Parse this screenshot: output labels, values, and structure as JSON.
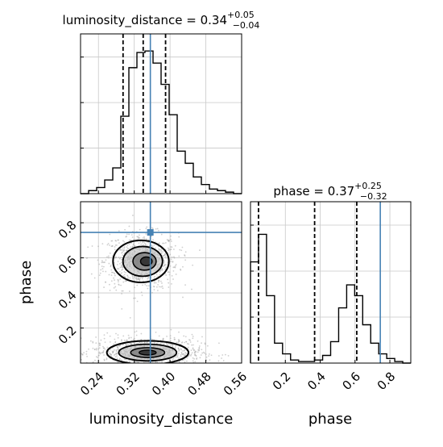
{
  "chart_data": [
    {
      "type": "histogram",
      "panel": "luminosity_distance marginal",
      "title": "luminosity_distance = 0.34",
      "title_sup": "+0.05",
      "title_sub": "−0.04",
      "xlim": [
        0.2,
        0.56
      ],
      "x_ticks": [
        0.24,
        0.32,
        0.4,
        0.48,
        0.56
      ],
      "bins": [
        0.2,
        0.218,
        0.236,
        0.254,
        0.272,
        0.29,
        0.308,
        0.326,
        0.344,
        0.362,
        0.38,
        0.398,
        0.416,
        0.434,
        0.452,
        0.47,
        0.488,
        0.506,
        0.524,
        0.542,
        0.56
      ],
      "counts": [
        0.0,
        0.02,
        0.04,
        0.09,
        0.17,
        0.51,
        0.83,
        0.93,
        0.94,
        0.86,
        0.72,
        0.52,
        0.28,
        0.2,
        0.11,
        0.06,
        0.03,
        0.02,
        0.01,
        0.0
      ],
      "quantile_lines": [
        0.295,
        0.34,
        0.39
      ],
      "truth": 0.356,
      "grid": true
    },
    {
      "type": "histogram",
      "panel": "phase marginal",
      "title": "phase = 0.37",
      "title_sup": "+0.25",
      "title_sub": "−0.32",
      "xlim": [
        0.0,
        0.92
      ],
      "x_ticks": [
        0.2,
        0.4,
        0.6,
        0.8
      ],
      "xlabel": "phase",
      "bins": [
        0.0,
        0.046,
        0.092,
        0.138,
        0.184,
        0.23,
        0.276,
        0.322,
        0.368,
        0.414,
        0.46,
        0.506,
        0.552,
        0.598,
        0.644,
        0.69,
        0.736,
        0.782,
        0.828,
        0.874,
        0.92
      ],
      "counts": [
        0.66,
        0.84,
        0.44,
        0.13,
        0.06,
        0.02,
        0.01,
        0.01,
        0.02,
        0.05,
        0.14,
        0.36,
        0.51,
        0.44,
        0.25,
        0.13,
        0.06,
        0.03,
        0.01,
        0.0
      ],
      "quantile_lines": [
        0.046,
        0.368,
        0.61
      ],
      "truth": 0.745,
      "grid": true
    },
    {
      "type": "scatter",
      "panel": "2D posterior phase vs luminosity_distance",
      "xlabel": "luminosity_distance",
      "ylabel": "phase",
      "xlim": [
        0.2,
        0.56
      ],
      "ylim": [
        0.0,
        0.92
      ],
      "x_ticks": [
        0.24,
        0.32,
        0.4,
        0.48,
        0.56
      ],
      "y_ticks": [
        0.2,
        0.4,
        0.6,
        0.8
      ],
      "modes": [
        {
          "x": 0.335,
          "y": 0.58,
          "sx": 0.026,
          "sy": 0.05,
          "weight": 0.45
        },
        {
          "x": 0.35,
          "y": 0.06,
          "sx": 0.038,
          "sy": 0.028,
          "weight": 0.55
        }
      ],
      "truth": {
        "x": 0.356,
        "y": 0.745
      },
      "grid": true
    }
  ],
  "colors": {
    "hist": "#000000",
    "truth": "#4682b4",
    "points": "#a8a8a8",
    "grid": "#c8c8c8",
    "contour_fill": "#7a7a7a"
  }
}
